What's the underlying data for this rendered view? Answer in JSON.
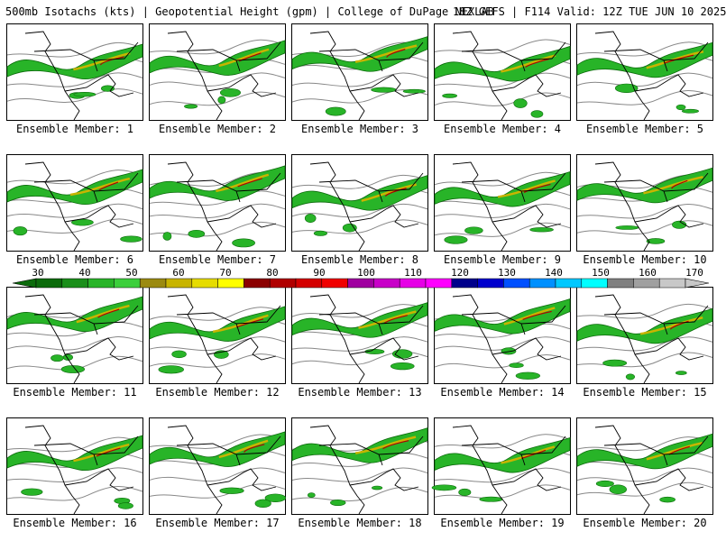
{
  "header": {
    "title_left": "500mb Isotachs (kts) | Geopotential Height (gpm) | College of DuPage NEXLAB",
    "title_right": "18Z GEFS | F114 Valid: 12Z TUE JUN 10 2025"
  },
  "members": [
    {
      "label": "Ensemble Member: 1"
    },
    {
      "label": "Ensemble Member: 2"
    },
    {
      "label": "Ensemble Member: 3"
    },
    {
      "label": "Ensemble Member: 4"
    },
    {
      "label": "Ensemble Member: 5"
    },
    {
      "label": "Ensemble Member: 6"
    },
    {
      "label": "Ensemble Member: 7"
    },
    {
      "label": "Ensemble Member: 8"
    },
    {
      "label": "Ensemble Member: 9"
    },
    {
      "label": "Ensemble Member: 10"
    },
    {
      "label": "Ensemble Member: 11"
    },
    {
      "label": "Ensemble Member: 12"
    },
    {
      "label": "Ensemble Member: 13"
    },
    {
      "label": "Ensemble Member: 14"
    },
    {
      "label": "Ensemble Member: 15"
    },
    {
      "label": "Ensemble Member: 16"
    },
    {
      "label": "Ensemble Member: 17"
    },
    {
      "label": "Ensemble Member: 18"
    },
    {
      "label": "Ensemble Member: 19"
    },
    {
      "label": "Ensemble Member: 20"
    }
  ],
  "colorbar": {
    "labels": [
      "30",
      "40",
      "50",
      "60",
      "70",
      "80",
      "90",
      "100",
      "110",
      "120",
      "130",
      "140",
      "150",
      "160",
      "170"
    ],
    "colors": [
      "#0b6b0b",
      "#1a8f1a",
      "#28b428",
      "#3ccf3c",
      "#9b8a10",
      "#c8b400",
      "#e6dc00",
      "#ffff00",
      "#8b0000",
      "#b00000",
      "#d40000",
      "#f00000",
      "#a000a0",
      "#c800c8",
      "#e600e6",
      "#ff00ff",
      "#00008b",
      "#0000cd",
      "#0050ff",
      "#0090ff",
      "#00c8ff",
      "#00ffff",
      "#808080",
      "#a0a0a0",
      "#c8c8c8"
    ]
  }
}
